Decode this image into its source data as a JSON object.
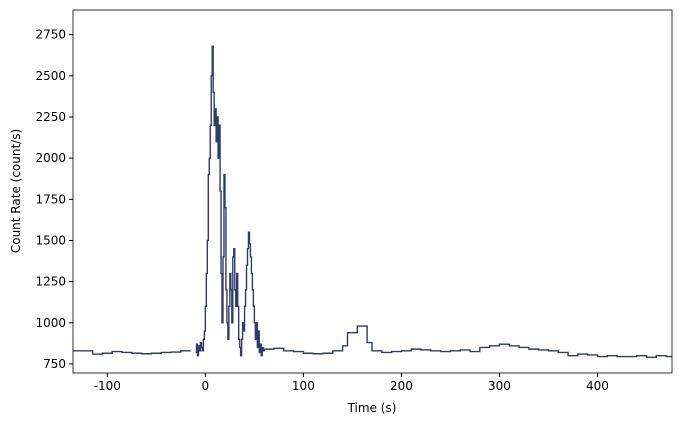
{
  "chart_data": {
    "type": "step",
    "xlabel": "Time (s)",
    "ylabel": "Count Rate (count/s)",
    "x": [
      -135,
      -125,
      -115,
      -105,
      -95,
      -85,
      -75,
      -65,
      -55,
      -45,
      -35,
      -25,
      -15,
      -10,
      -9,
      -8,
      -7,
      -6,
      -5,
      -4,
      -3,
      -2,
      -1,
      0,
      1,
      2,
      3,
      4,
      5,
      6,
      7,
      8,
      9,
      10,
      11,
      12,
      13,
      14,
      15,
      16,
      17,
      18,
      19,
      20,
      21,
      22,
      23,
      24,
      25,
      26,
      27,
      28,
      29,
      30,
      31,
      32,
      33,
      34,
      35,
      36,
      37,
      38,
      39,
      40,
      41,
      42,
      43,
      44,
      45,
      46,
      47,
      48,
      49,
      50,
      51,
      52,
      53,
      54,
      55,
      56,
      57,
      58,
      59,
      60,
      70,
      80,
      90,
      100,
      110,
      120,
      130,
      140,
      145,
      155,
      165,
      170,
      180,
      190,
      200,
      210,
      220,
      230,
      240,
      250,
      260,
      270,
      280,
      290,
      300,
      310,
      320,
      330,
      340,
      350,
      360,
      370,
      380,
      390,
      400,
      410,
      420,
      430,
      440,
      450,
      460,
      470
    ],
    "series": [
      {
        "color": "#2f3b6b",
        "values": [
          830,
          830,
          810,
          815,
          825,
          820,
          815,
          812,
          815,
          820,
          822,
          830,
          null,
          820,
          870,
          800,
          860,
          830,
          880,
          850,
          830,
          900,
          950,
          1100,
          1300,
          1500,
          1900,
          2000,
          2200,
          2500,
          2680,
          2400,
          2200,
          2300,
          2100,
          2250,
          2000,
          2200,
          1800,
          1300,
          1000,
          1400,
          1900,
          1700,
          1200,
          1000,
          900,
          1100,
          1300,
          1200,
          1000,
          1400,
          1450,
          1200,
          1100,
          1300,
          1100,
          900,
          850,
          800,
          900,
          1000,
          950,
          1100,
          1200,
          1350,
          1450,
          1550,
          1480,
          1400,
          1300,
          1200,
          1100,
          1000,
          900,
          1000,
          850,
          950,
          820,
          870,
          800,
          850,
          830,
          840,
          845,
          830,
          825,
          815,
          812,
          815,
          830,
          860,
          940,
          980,
          880,
          830,
          820,
          825,
          830,
          840,
          835,
          830,
          825,
          830,
          835,
          825,
          850,
          860,
          870,
          860,
          850,
          840,
          835,
          830,
          820,
          800,
          810,
          805,
          795,
          800,
          795,
          795,
          800,
          790,
          800,
          795
        ]
      }
    ],
    "xlim": [
      -135,
      476
    ],
    "ylim": [
      695,
      2900
    ],
    "xticks": [
      -100,
      0,
      100,
      200,
      300,
      400
    ],
    "yticks": [
      750,
      1000,
      1250,
      1500,
      1750,
      2000,
      2250,
      2500,
      2750
    ]
  }
}
